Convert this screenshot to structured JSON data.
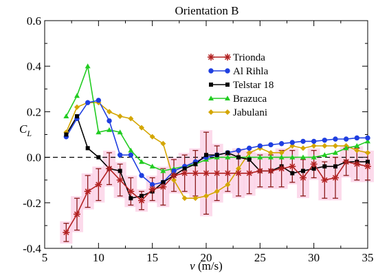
{
  "chart_data": {
    "type": "line",
    "title": "Orientation B",
    "xlabel_main": "v",
    "xlabel_unit": " (m/s)",
    "ylabel_main": "C",
    "ylabel_sub": "L",
    "xlim": [
      5,
      35
    ],
    "ylim": [
      -0.4,
      0.6
    ],
    "xticks": [
      5,
      10,
      15,
      20,
      25,
      30,
      35
    ],
    "xtick_labels": [
      "5",
      "10",
      "15",
      "20",
      "25",
      "30",
      "35"
    ],
    "yticks": [
      -0.4,
      -0.2,
      0.0,
      0.2,
      0.4,
      0.6
    ],
    "ytick_labels": [
      "-0.4",
      "-0.2",
      "0.0",
      "0.2",
      "0.4",
      "0.6"
    ],
    "reference_line": {
      "y": 0.0,
      "style": "dashed"
    },
    "grid": false,
    "legend_position": "upper-right",
    "series": [
      {
        "name": "Trionda",
        "color": "#b22222",
        "marker": "asterisk",
        "error_bar_color": "#8b1a1a",
        "x": [
          7,
          8,
          9,
          10,
          11,
          12,
          13,
          14,
          15,
          16,
          17,
          18,
          19,
          20,
          21,
          22,
          23,
          24,
          25,
          26,
          27,
          28,
          29,
          30,
          31,
          32,
          33,
          34,
          35
        ],
        "y": [
          -0.33,
          -0.25,
          -0.15,
          -0.12,
          -0.05,
          -0.1,
          -0.15,
          -0.19,
          -0.14,
          -0.13,
          -0.08,
          -0.07,
          -0.07,
          -0.07,
          -0.07,
          -0.07,
          -0.07,
          -0.07,
          -0.06,
          -0.06,
          -0.05,
          -0.04,
          -0.09,
          -0.03,
          -0.1,
          -0.09,
          -0.02,
          -0.03,
          -0.04
        ],
        "err": [
          0.04,
          0.07,
          0.07,
          0.07,
          0.07,
          0.07,
          0.06,
          0.04,
          0.05,
          0.08,
          0.07,
          0.08,
          0.1,
          0.18,
          0.12,
          0.08,
          0.1,
          0.09,
          0.07,
          0.07,
          0.08,
          0.07,
          0.08,
          0.06,
          0.08,
          0.09,
          0.06,
          0.07,
          0.06
        ]
      },
      {
        "name": "Al Rihla",
        "color": "#1f3fe0",
        "marker": "circle",
        "x": [
          7,
          8,
          9,
          10,
          11,
          12,
          13,
          14,
          15,
          16,
          17,
          18,
          19,
          20,
          21,
          22,
          23,
          24,
          25,
          26,
          27,
          28,
          29,
          30,
          31,
          32,
          33,
          34,
          35
        ],
        "y": [
          0.09,
          0.17,
          0.24,
          0.25,
          0.16,
          0.01,
          0.01,
          -0.08,
          -0.12,
          -0.11,
          -0.06,
          -0.04,
          -0.02,
          0.0,
          0.01,
          0.02,
          0.03,
          0.04,
          0.05,
          0.055,
          0.06,
          0.065,
          0.07,
          0.07,
          0.075,
          0.08,
          0.08,
          0.085,
          0.085
        ]
      },
      {
        "name": "Telstar 18",
        "color": "#000000",
        "marker": "square",
        "x": [
          7,
          8,
          9,
          10,
          11,
          12,
          13,
          14,
          15,
          16,
          17,
          18,
          19,
          20,
          21,
          22,
          23,
          24,
          25,
          26,
          27,
          28,
          29,
          30,
          31,
          32,
          33,
          34,
          35
        ],
        "y": [
          0.1,
          0.18,
          0.04,
          0.0,
          -0.05,
          -0.06,
          -0.18,
          -0.17,
          -0.15,
          -0.11,
          -0.08,
          -0.05,
          -0.03,
          0.01,
          0.01,
          0.02,
          0.0,
          -0.01,
          -0.06,
          -0.06,
          -0.04,
          -0.07,
          -0.06,
          -0.05,
          -0.04,
          -0.04,
          -0.02,
          -0.02,
          -0.02
        ]
      },
      {
        "name": "Brazuca",
        "color": "#22cc22",
        "marker": "triangle",
        "x": [
          7,
          8,
          9,
          10,
          11,
          12,
          13,
          14,
          15,
          16,
          17,
          18,
          19,
          20,
          21,
          22,
          23,
          24,
          25,
          26,
          27,
          28,
          29,
          30,
          31,
          32,
          33,
          34,
          35
        ],
        "y": [
          0.18,
          0.27,
          0.4,
          0.11,
          0.12,
          0.11,
          0.03,
          -0.02,
          -0.04,
          -0.06,
          -0.05,
          -0.04,
          -0.03,
          -0.01,
          0.0,
          0.0,
          0.0,
          0.0,
          0.0,
          0.0,
          0.0,
          0.0,
          0.0,
          0.0,
          0.01,
          0.02,
          0.04,
          0.05,
          0.07
        ]
      },
      {
        "name": "Jabulani",
        "color": "#d4a600",
        "marker": "diamond",
        "x": [
          7,
          8,
          9,
          10,
          11,
          12,
          13,
          14,
          15,
          16,
          17,
          18,
          19,
          20,
          21,
          22,
          23,
          24,
          25,
          26,
          27,
          28,
          29,
          30,
          31,
          32,
          33,
          34,
          35
        ],
        "y": [
          0.11,
          0.22,
          0.24,
          0.24,
          0.2,
          0.18,
          0.17,
          0.13,
          0.09,
          0.06,
          -0.1,
          -0.18,
          -0.18,
          -0.17,
          -0.15,
          -0.12,
          -0.05,
          0.02,
          0.04,
          0.02,
          0.02,
          0.05,
          0.04,
          0.05,
          0.05,
          0.05,
          0.05,
          0.03,
          0.02
        ]
      }
    ]
  }
}
